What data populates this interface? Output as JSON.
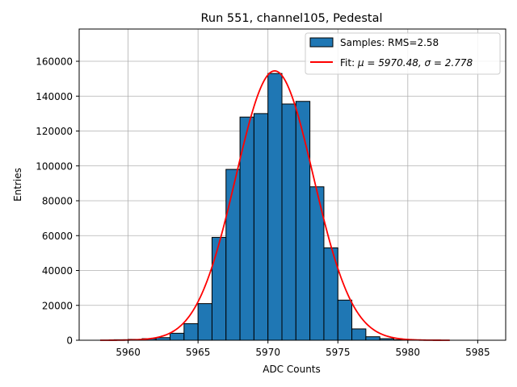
{
  "chart_data": {
    "type": "bar",
    "title": "Run 551, channel105, Pedestal",
    "xlabel": "ADC Counts",
    "ylabel": "Entries",
    "xlim": [
      5956.5,
      5987.0
    ],
    "ylim": [
      0,
      178500
    ],
    "x_ticks": [
      5960,
      5965,
      5970,
      5975,
      5980,
      5985
    ],
    "y_ticks": [
      0,
      20000,
      40000,
      60000,
      80000,
      100000,
      120000,
      140000,
      160000
    ],
    "grid": true,
    "legend_position": "top-right",
    "bin_width": 1,
    "bins": [
      {
        "left": 5959,
        "count": 300
      },
      {
        "left": 5960,
        "count": 500
      },
      {
        "left": 5961,
        "count": 900
      },
      {
        "left": 5962,
        "count": 1500
      },
      {
        "left": 5963,
        "count": 4000
      },
      {
        "left": 5964,
        "count": 9500
      },
      {
        "left": 5965,
        "count": 21000
      },
      {
        "left": 5966,
        "count": 59000
      },
      {
        "left": 5967,
        "count": 98000
      },
      {
        "left": 5968,
        "count": 128000
      },
      {
        "left": 5969,
        "count": 130000
      },
      {
        "left": 5970,
        "count": 153000
      },
      {
        "left": 5971,
        "count": 135500
      },
      {
        "left": 5972,
        "count": 137000
      },
      {
        "left": 5973,
        "count": 88000
      },
      {
        "left": 5974,
        "count": 53000
      },
      {
        "left": 5975,
        "count": 23000
      },
      {
        "left": 5976,
        "count": 6500
      },
      {
        "left": 5977,
        "count": 2000
      },
      {
        "left": 5978,
        "count": 900
      },
      {
        "left": 5979,
        "count": 300
      }
    ],
    "fit": {
      "mu": 5970.48,
      "sigma": 2.778,
      "amplitude": 154500,
      "x_range": [
        5958,
        5983
      ]
    },
    "series": [
      {
        "name": "Samples",
        "legend_label": "Samples: RMS=2.58",
        "color": "#1f77b4",
        "style": "histogram"
      },
      {
        "name": "Fit",
        "legend_prefix": "Fit: ",
        "legend_mu_label": "μ = 5970.48, ",
        "legend_sigma_label": "σ = 2.778",
        "color": "#ff0000",
        "style": "line"
      }
    ]
  }
}
